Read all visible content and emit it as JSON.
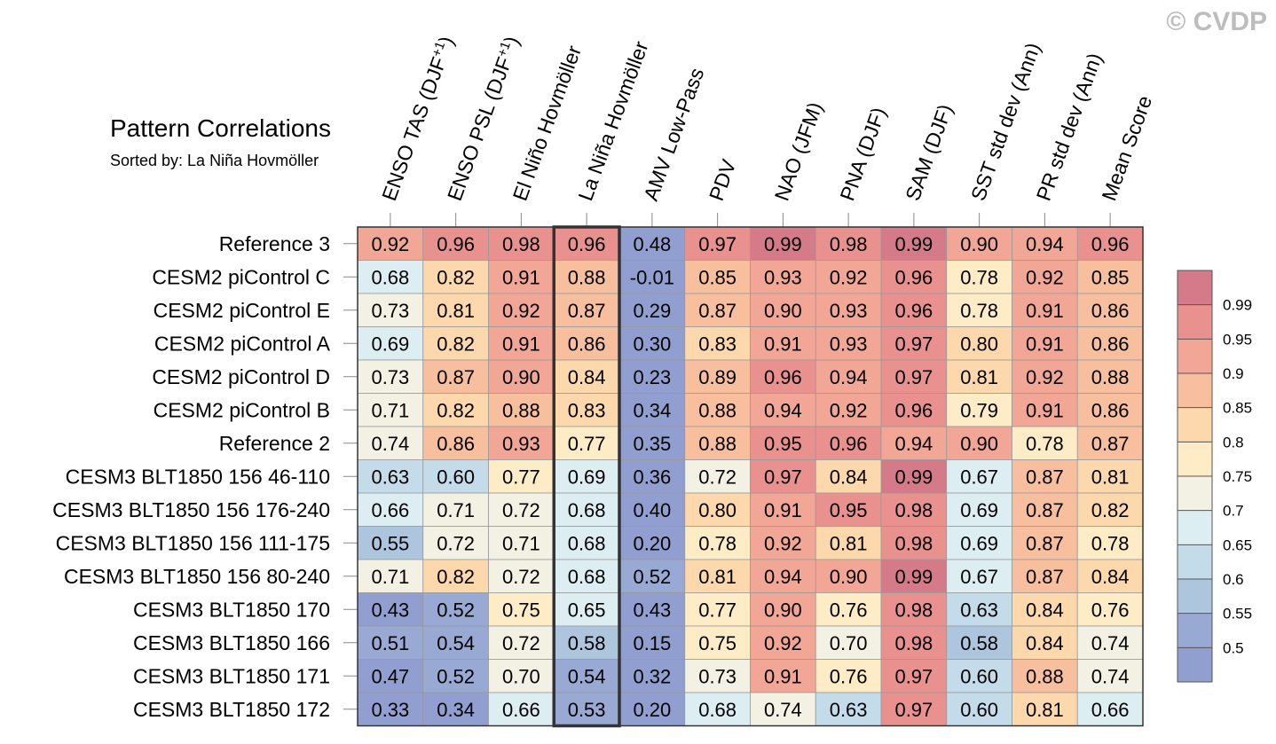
{
  "watermark": "© CVDP",
  "chart_data": {
    "type": "heatmap",
    "title": "Pattern Correlations",
    "subtitle": "Sorted by: La Niña Hovmöller",
    "columns": [
      "ENSO TAS (DJF+1)",
      "ENSO PSL (DJF+1)",
      "El Niño Hovmöller",
      "La Niña Hovmöller",
      "AMV Low-Pass",
      "PDV",
      "NAO (JFM)",
      "PNA (DJF)",
      "SAM (DJF)",
      "SST std dev (Ann)",
      "PR std dev (Ann)",
      "Mean Score"
    ],
    "highlighted_column": "La Niña Hovmöller",
    "rows": [
      "Reference 3",
      "CESM2 piControl C",
      "CESM2 piControl E",
      "CESM2 piControl A",
      "CESM2 piControl D",
      "CESM2 piControl B",
      "Reference 2",
      "CESM3 BLT1850 156 46-110",
      "CESM3 BLT1850 156 176-240",
      "CESM3 BLT1850 156 111-175",
      "CESM3 BLT1850 156 80-240",
      "CESM3 BLT1850 170",
      "CESM3 BLT1850 166",
      "CESM3 BLT1850 171",
      "CESM3 BLT1850 172"
    ],
    "values": [
      [
        "0.92",
        "0.96",
        "0.98",
        "0.96",
        "0.48",
        "0.97",
        "0.99",
        "0.98",
        "0.99",
        "0.90",
        "0.94",
        "0.96"
      ],
      [
        "0.68",
        "0.82",
        "0.91",
        "0.88",
        "-0.01",
        "0.85",
        "0.93",
        "0.92",
        "0.96",
        "0.78",
        "0.92",
        "0.85"
      ],
      [
        "0.73",
        "0.81",
        "0.92",
        "0.87",
        "0.29",
        "0.87",
        "0.90",
        "0.93",
        "0.96",
        "0.78",
        "0.91",
        "0.86"
      ],
      [
        "0.69",
        "0.82",
        "0.91",
        "0.86",
        "0.30",
        "0.83",
        "0.91",
        "0.93",
        "0.97",
        "0.80",
        "0.91",
        "0.86"
      ],
      [
        "0.73",
        "0.87",
        "0.90",
        "0.84",
        "0.23",
        "0.89",
        "0.96",
        "0.94",
        "0.97",
        "0.81",
        "0.92",
        "0.88"
      ],
      [
        "0.71",
        "0.82",
        "0.88",
        "0.83",
        "0.34",
        "0.88",
        "0.94",
        "0.92",
        "0.96",
        "0.79",
        "0.91",
        "0.86"
      ],
      [
        "0.74",
        "0.86",
        "0.93",
        "0.77",
        "0.35",
        "0.88",
        "0.95",
        "0.96",
        "0.94",
        "0.90",
        "0.78",
        "0.87"
      ],
      [
        "0.63",
        "0.60",
        "0.77",
        "0.69",
        "0.36",
        "0.72",
        "0.97",
        "0.84",
        "0.99",
        "0.67",
        "0.87",
        "0.81"
      ],
      [
        "0.66",
        "0.71",
        "0.72",
        "0.68",
        "0.40",
        "0.80",
        "0.91",
        "0.95",
        "0.98",
        "0.69",
        "0.87",
        "0.82"
      ],
      [
        "0.55",
        "0.72",
        "0.71",
        "0.68",
        "0.20",
        "0.78",
        "0.92",
        "0.81",
        "0.98",
        "0.69",
        "0.87",
        "0.78"
      ],
      [
        "0.71",
        "0.82",
        "0.72",
        "0.68",
        "0.52",
        "0.81",
        "0.94",
        "0.90",
        "0.99",
        "0.67",
        "0.87",
        "0.84"
      ],
      [
        "0.43",
        "0.52",
        "0.75",
        "0.65",
        "0.43",
        "0.77",
        "0.90",
        "0.76",
        "0.98",
        "0.63",
        "0.84",
        "0.76"
      ],
      [
        "0.51",
        "0.54",
        "0.72",
        "0.58",
        "0.15",
        "0.75",
        "0.92",
        "0.70",
        "0.98",
        "0.58",
        "0.84",
        "0.74"
      ],
      [
        "0.47",
        "0.52",
        "0.70",
        "0.54",
        "0.32",
        "0.73",
        "0.91",
        "0.76",
        "0.97",
        "0.60",
        "0.88",
        "0.74"
      ],
      [
        "0.33",
        "0.34",
        "0.66",
        "0.53",
        "0.20",
        "0.68",
        "0.74",
        "0.63",
        "0.97",
        "0.60",
        "0.81",
        "0.66"
      ]
    ],
    "colorbar": {
      "labels": [
        "0.99",
        "0.95",
        "0.9",
        "0.85",
        "0.8",
        "0.75",
        "0.7",
        "0.65",
        "0.6",
        "0.55",
        "0.5"
      ],
      "colors": [
        "#d47a89",
        "#e8918e",
        "#f2a696",
        "#f8bf9f",
        "#fcd8ac",
        "#fdecc5",
        "#f3f1e3",
        "#ddeef3",
        "#c4dbea",
        "#aec5de",
        "#98a9d3",
        "#909fcf"
      ]
    }
  }
}
